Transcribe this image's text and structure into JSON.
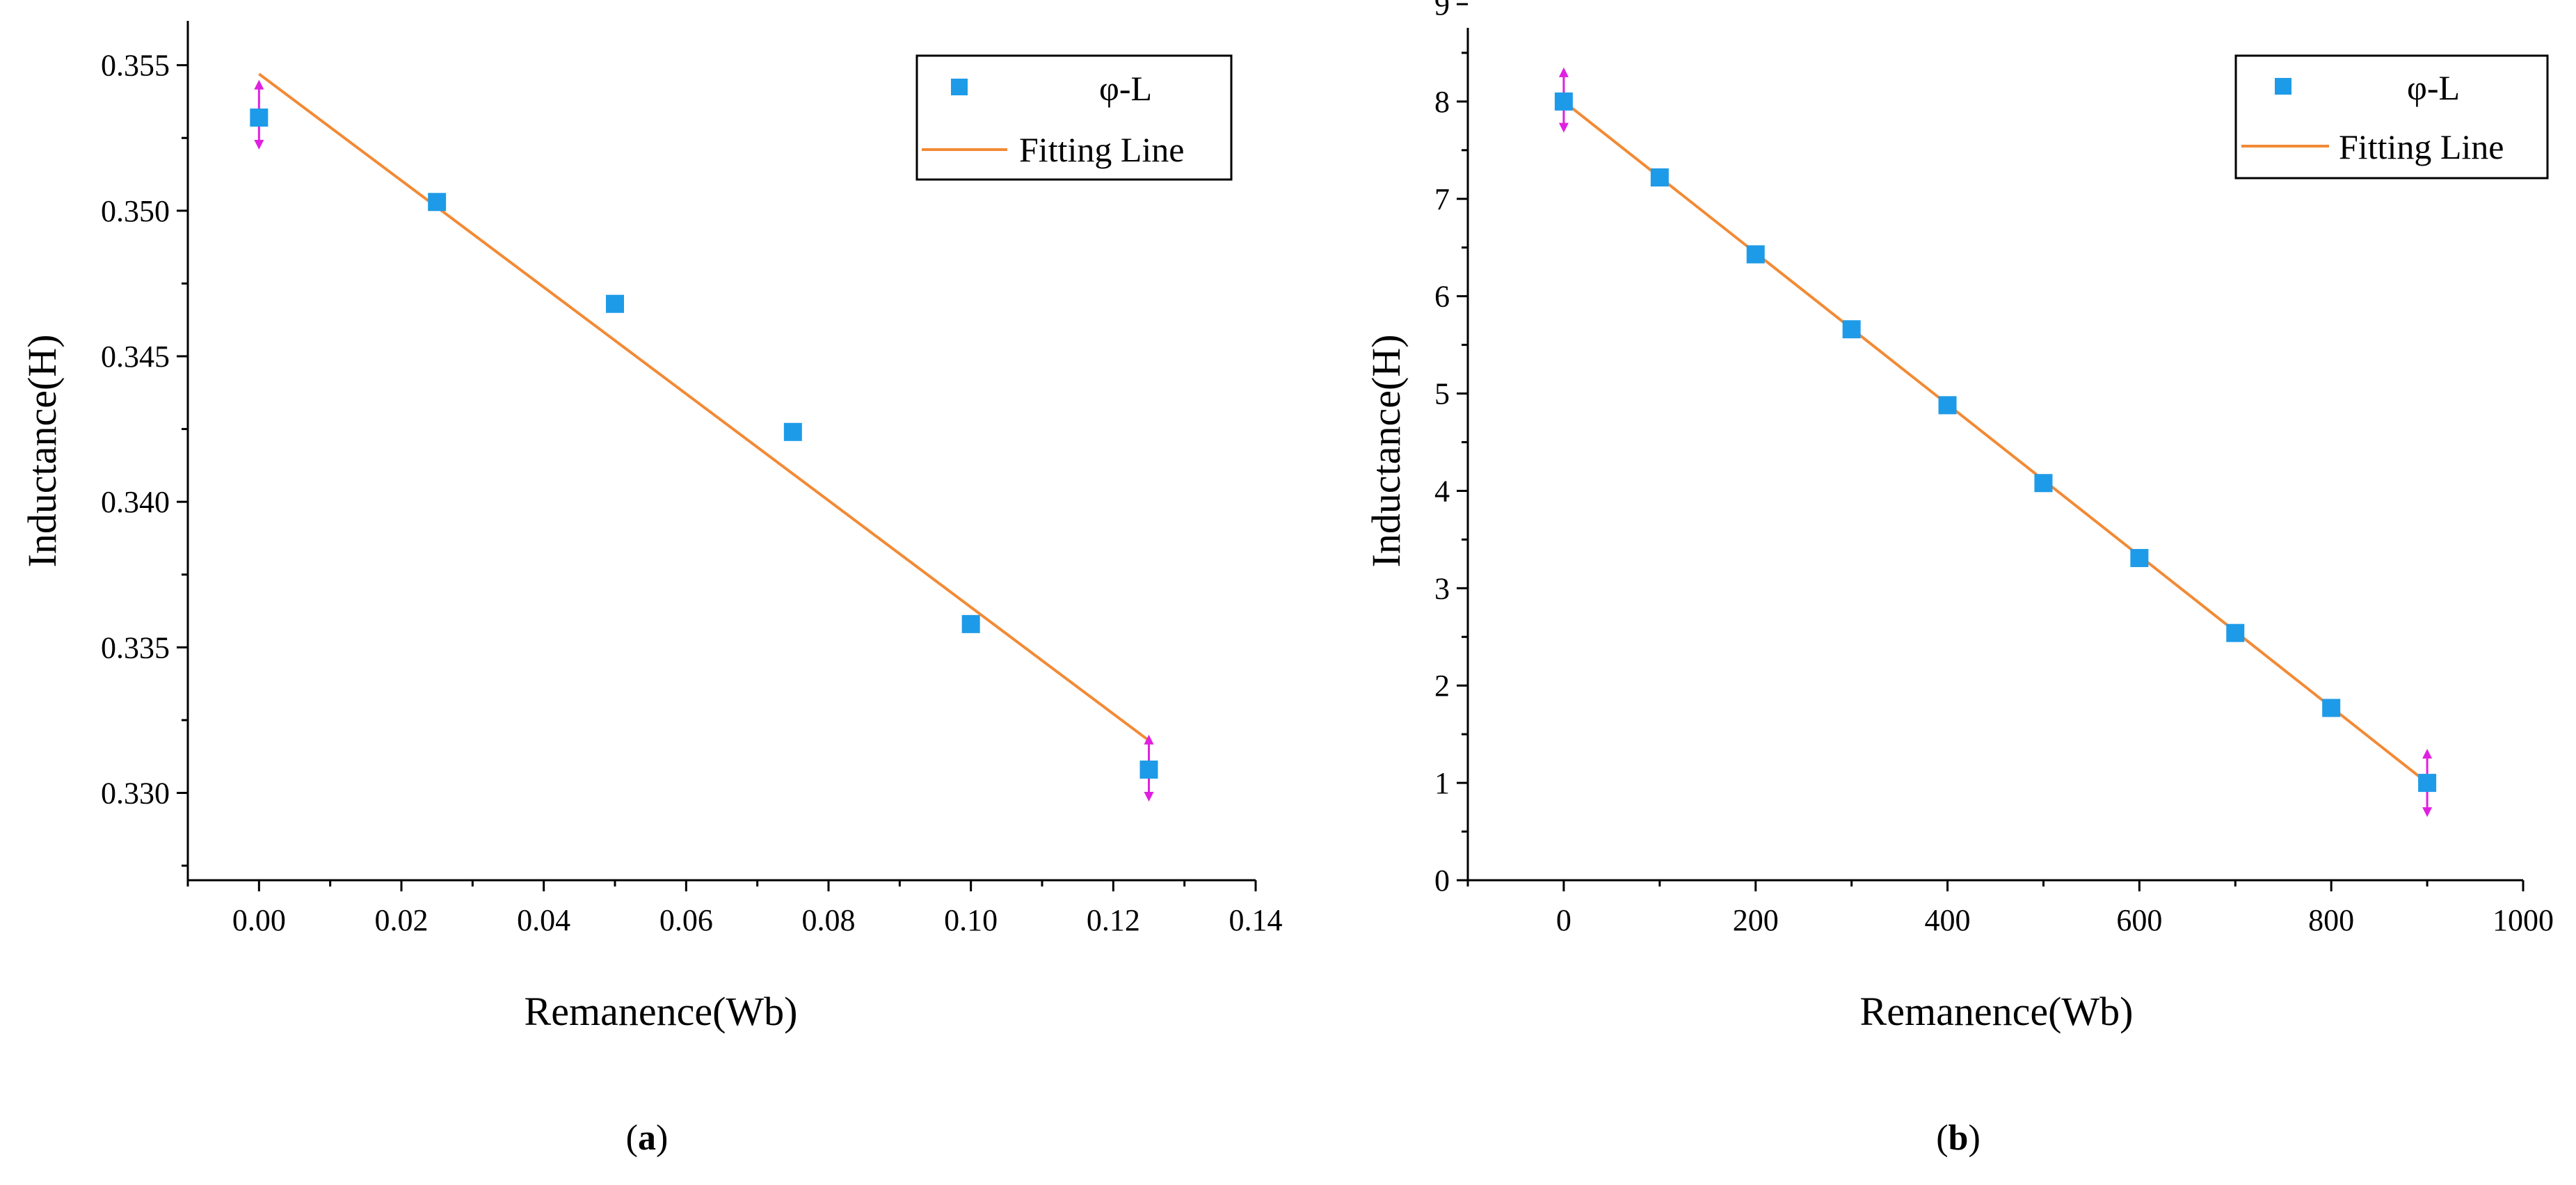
{
  "colors": {
    "marker": "#1e9be8",
    "fit_line": "#f28a35",
    "error_bar": "#e020e0",
    "axis": "#000000"
  },
  "chart_data": [
    {
      "panel_label": "(a)",
      "panel_letter": "a",
      "type": "scatter",
      "xlabel": "Remanence(Wb)",
      "ylabel": "Inductance(H)",
      "xlim": [
        -0.01,
        0.14
      ],
      "ylim": [
        0.327,
        0.357
      ],
      "xticks": [
        0.0,
        0.02,
        0.04,
        0.06,
        0.08,
        0.1,
        0.12,
        0.14
      ],
      "xtick_labels": [
        "0.00",
        "0.02",
        "0.04",
        "0.06",
        "0.08",
        "0.10",
        "0.12",
        "0.14"
      ],
      "yticks": [
        0.33,
        0.335,
        0.34,
        0.345,
        0.35,
        0.355
      ],
      "ytick_labels": [
        "0.330",
        "0.335",
        "0.340",
        "0.345",
        "0.350",
        "0.355"
      ],
      "series": [
        {
          "name": "φ-L",
          "x": [
            0.0,
            0.025,
            0.05,
            0.075,
            0.1,
            0.125
          ],
          "y": [
            0.3532,
            0.3503,
            0.3468,
            0.3424,
            0.3358,
            0.3308
          ]
        }
      ],
      "fit_line": {
        "name": "Fitting Line",
        "x": [
          0.0,
          0.125
        ],
        "y": [
          0.3547,
          0.3318
        ]
      },
      "error_bars": [
        {
          "x": 0.0,
          "y": 0.3532,
          "ylow": 0.3521,
          "yhigh": 0.3545
        },
        {
          "x": 0.125,
          "y": 0.3308,
          "ylow": 0.3297,
          "yhigh": 0.332
        }
      ],
      "legend": {
        "position": "top-right",
        "entries": [
          "φ-L",
          "Fitting Line"
        ]
      }
    },
    {
      "panel_label": "(b)",
      "panel_letter": "b",
      "type": "scatter",
      "xlabel": "Remanence(Wb)",
      "ylabel": "Inductance(H)",
      "xlim": [
        -100,
        1000
      ],
      "ylim": [
        0,
        9
      ],
      "xticks": [
        0,
        200,
        400,
        600,
        800,
        1000
      ],
      "xtick_labels": [
        "0",
        "200",
        "400",
        "600",
        "800",
        "1000"
      ],
      "yticks": [
        0,
        1,
        2,
        3,
        4,
        5,
        6,
        7,
        8,
        9
      ],
      "ytick_labels": [
        "0",
        "1",
        "2",
        "3",
        "4",
        "5",
        "6",
        "7",
        "8",
        "9"
      ],
      "series": [
        {
          "name": "φ-L",
          "x": [
            0,
            100,
            200,
            300,
            400,
            500,
            600,
            700,
            800,
            900
          ],
          "y": [
            8.0,
            7.22,
            6.43,
            5.66,
            4.88,
            4.08,
            3.31,
            2.54,
            1.77,
            1.0
          ]
        }
      ],
      "fit_line": {
        "name": "Fitting Line",
        "x": [
          0,
          900
        ],
        "y": [
          8.0,
          1.0
        ]
      },
      "error_bars": [
        {
          "x": 0,
          "y": 8.0,
          "ylow": 7.68,
          "yhigh": 8.35
        },
        {
          "x": 900,
          "y": 1.0,
          "ylow": 0.65,
          "yhigh": 1.35
        }
      ],
      "legend": {
        "position": "top-right",
        "entries": [
          "φ-L",
          "Fitting Line"
        ]
      }
    }
  ]
}
